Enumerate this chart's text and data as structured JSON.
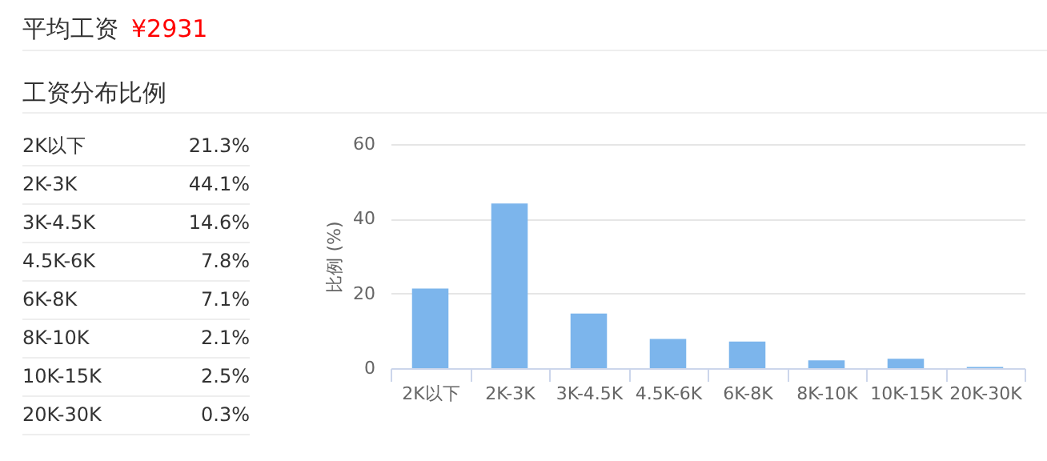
{
  "chart_data": [
    {
      "type": "other",
      "title": "平均工资",
      "subtitle": "工资分布比例",
      "annotations": [
        "¥2931",
        "2K以下",
        "21.3%",
        "2K-3K",
        "44.1%",
        "3K-4.5K",
        "14.6%",
        "4.5K-6K",
        "7.8%",
        "6K-8K",
        "7.1%",
        "8K-10K",
        "2.1%",
        "10K-15K",
        "2.5%",
        "20K-30K",
        "0.3%"
      ]
    },
    {
      "type": "bar",
      "ylabel": "比例 (%)",
      "categories": [
        "2K以下",
        "2K-3K",
        "3K-4.5K",
        "4.5K-6K",
        "6K-8K",
        "8K-10K",
        "10K-15K",
        "20K-30K"
      ],
      "values": [
        21.3,
        44.1,
        14.6,
        7.8,
        7.1,
        2.1,
        2.5,
        0.3
      ],
      "color": "#7cb5ec",
      "ylim": [
        0,
        60
      ],
      "yticks": [
        0,
        20,
        40,
        60
      ],
      "grid": "y"
    }
  ]
}
